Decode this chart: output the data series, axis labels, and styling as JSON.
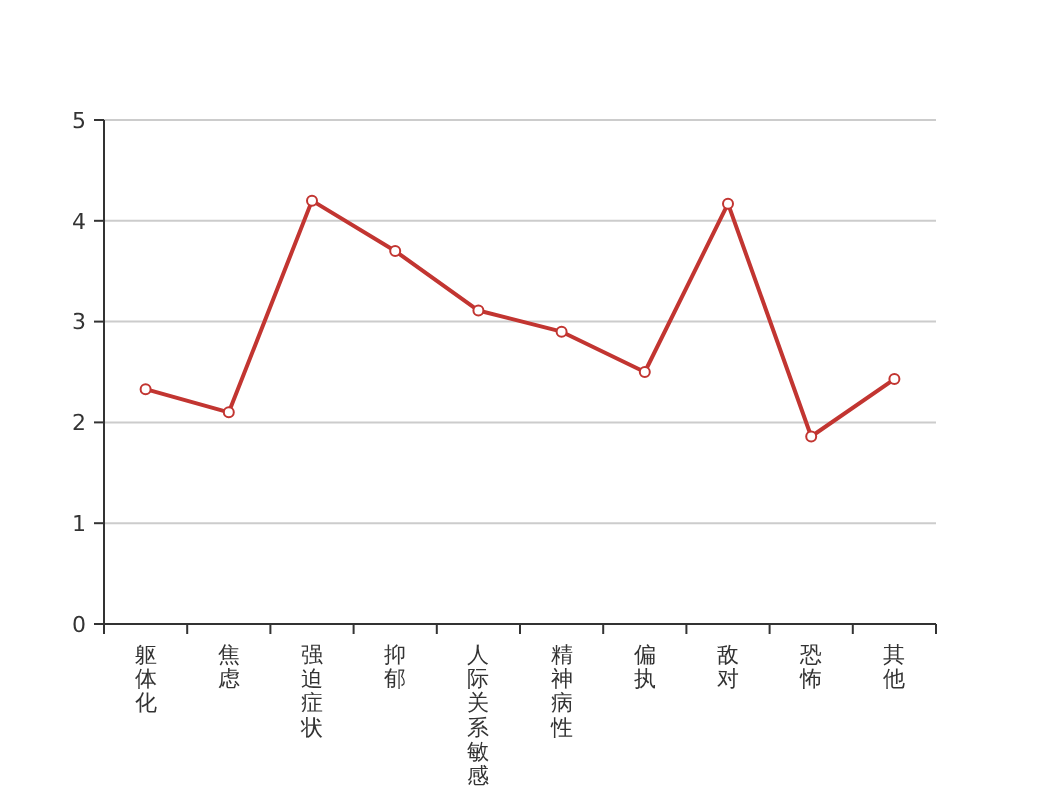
{
  "chart_data": {
    "type": "line",
    "categories": [
      "躯体化",
      "焦虑",
      "强迫症状",
      "抑郁",
      "人际关系敏感",
      "精神病性",
      "偏执",
      "敌对",
      "恐怖",
      "其他"
    ],
    "series": [
      {
        "color": "#c23531",
        "values": [
          2.33,
          2.1,
          4.2,
          3.7,
          3.11,
          2.9,
          2.5,
          4.17,
          1.86,
          2.43
        ]
      }
    ],
    "ylim": [
      0,
      5
    ],
    "yticks": [
      0,
      1,
      2,
      3,
      4,
      5
    ],
    "grid": "y",
    "marker": "circle",
    "line_style": "solid"
  }
}
